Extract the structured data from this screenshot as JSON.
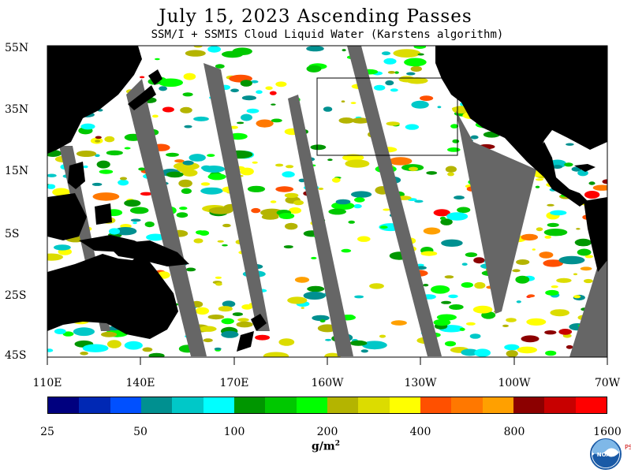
{
  "title": "July 15, 2023  Ascending Passes",
  "subtitle": "SSM/I + SSMIS Cloud Liquid Water (Karstens algorithm)",
  "map": {
    "latitude_labels": [
      "55N",
      "35N",
      "15N",
      "5S",
      "25S",
      "45S"
    ],
    "longitude_labels": [
      "110E",
      "140E",
      "170E",
      "160W",
      "130W",
      "100W",
      "70W"
    ],
    "land_color": "#000000",
    "no_data_color": "#666666",
    "background_color": "#ffffff"
  },
  "colorbar": {
    "tick_labels": [
      "25",
      "50",
      "100",
      "200",
      "400",
      "800",
      "1600"
    ],
    "units_base": "g/m",
    "units_exp": "2",
    "colors": [
      "#00007f",
      "#0028b4",
      "#0050ff",
      "#009090",
      "#00c8c8",
      "#00ffff",
      "#009600",
      "#00c800",
      "#00ff00",
      "#b4b400",
      "#dcdc00",
      "#ffff00",
      "#ff5000",
      "#ff7800",
      "#ffa000",
      "#8c0000",
      "#c80000",
      "#ff0000"
    ]
  },
  "logo": {
    "text": "NOAA",
    "side_text": "PSL"
  }
}
